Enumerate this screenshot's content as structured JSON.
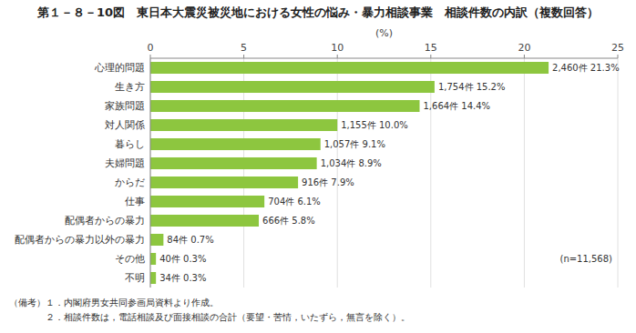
{
  "chart_data": {
    "type": "bar",
    "orientation": "horizontal",
    "title": "第１－８－10図　東日本大震災被災地における女性の悩み・暴力相談事業　相談件数の内訳（複数回答）",
    "categories": [
      "心理的問題",
      "生き方",
      "家族問題",
      "対人関係",
      "暮らし",
      "夫婦問題",
      "からだ",
      "仕事",
      "配偶者からの暴力",
      "配偶者からの暴力以外の暴力",
      "その他",
      "不明"
    ],
    "values": [
      21.3,
      15.2,
      14.4,
      10.0,
      9.1,
      8.9,
      7.9,
      6.1,
      5.8,
      0.7,
      0.3,
      0.3
    ],
    "value_labels": [
      "2,460件 21.3%",
      "1,754件 15.2%",
      "1,664件 14.4%",
      "1,155件 10.0%",
      "1,057件 9.1%",
      "1,034件 8.9%",
      "916件 7.9%",
      "704件 6.1%",
      "666件 5.8%",
      "84件 0.7%",
      "40件 0.3%",
      "34件 0.3%"
    ],
    "data_labels": true,
    "color": "#8dc63f",
    "xlabel": "(%)",
    "xlim": [
      0,
      25
    ],
    "xticks": [
      0,
      5,
      10,
      15,
      20,
      25
    ],
    "grid": true,
    "annotation": "(n=11,568)",
    "notes": [
      "（備考）１．内閣府男女共同参画局資料より作成。",
      "　　　　２．相談件数は，電話相談及び面接相談の合計（要望・苦情，いたずら，無言を除く）。"
    ]
  }
}
